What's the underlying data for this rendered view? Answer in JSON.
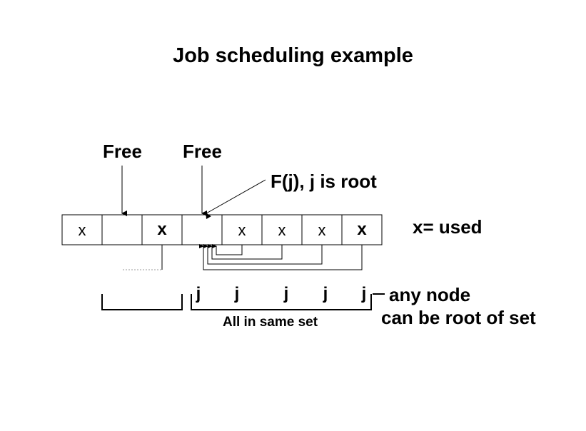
{
  "title": "Job scheduling example",
  "free_labels": [
    "Free",
    "Free"
  ],
  "root_label": "F(j), j is root",
  "legend": "x= used",
  "cells": [
    {
      "text": "x",
      "bold": false
    },
    {
      "text": "",
      "bold": false
    },
    {
      "text": "x",
      "bold": true
    },
    {
      "text": "",
      "bold": false
    },
    {
      "text": "x",
      "bold": false
    },
    {
      "text": "x",
      "bold": false
    },
    {
      "text": "x",
      "bold": false
    },
    {
      "text": "x",
      "bold": true
    }
  ],
  "j_labels": [
    "j",
    "j",
    "j",
    "j",
    "j"
  ],
  "set_label": "All in same set",
  "note_line1": "any node",
  "note_line2": "can be root of set"
}
